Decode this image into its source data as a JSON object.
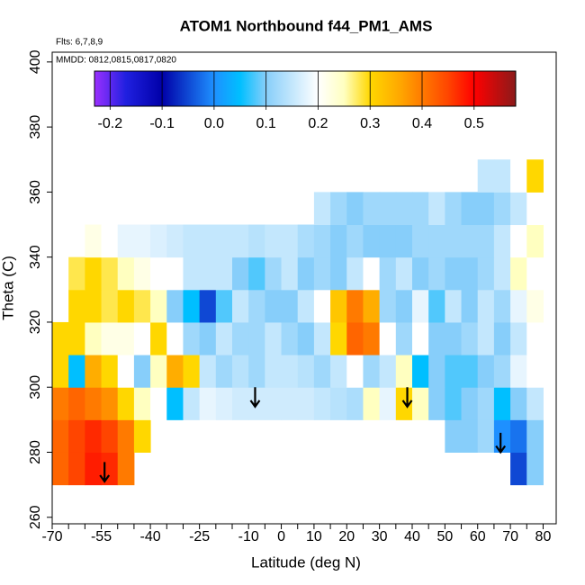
{
  "chart_data": {
    "type": "heatmap",
    "title": "ATOM1 Northbound f44_PM1_AMS",
    "annotations": [
      "Flts: 6,7,8,9",
      "MMDD: 0812,0815,0817,0820"
    ],
    "xlabel": "Latitude (deg N)",
    "ylabel": "Theta (C)",
    "xlim": [
      -70,
      84
    ],
    "ylim": [
      258,
      403
    ],
    "xticks": [
      -70,
      -55,
      -40,
      -25,
      -10,
      0,
      10,
      20,
      30,
      40,
      50,
      60,
      70,
      80
    ],
    "xminorticks": [
      -65,
      -60,
      -50,
      -45,
      -35,
      -30,
      -20,
      -15,
      -5,
      5,
      15,
      25,
      35,
      45,
      55,
      65,
      75
    ],
    "yticks": [
      260,
      280,
      300,
      320,
      340,
      360,
      380,
      400
    ],
    "x_edges": [
      -70,
      -65,
      -60,
      -55,
      -50,
      -45,
      -40,
      -35,
      -30,
      -25,
      -20,
      -15,
      -10,
      -5,
      0,
      5,
      10,
      15,
      20,
      25,
      30,
      35,
      40,
      45,
      50,
      55,
      60,
      65,
      70,
      75,
      80
    ],
    "y_edges": [
      270,
      280,
      290,
      300,
      310,
      320,
      330,
      340,
      350,
      360,
      370
    ],
    "z": [
      [
        0.42,
        0.45,
        0.48,
        0.47,
        0.4,
        null,
        null,
        null,
        null,
        null,
        null,
        null,
        null,
        null,
        null,
        null,
        null,
        null,
        null,
        null,
        null,
        null,
        null,
        null,
        null,
        null,
        null,
        null,
        -0.05,
        0.1
      ],
      [
        0.42,
        0.45,
        0.47,
        0.45,
        0.4,
        0.3,
        null,
        null,
        null,
        null,
        null,
        null,
        null,
        null,
        null,
        null,
        null,
        null,
        null,
        null,
        null,
        null,
        null,
        null,
        0.1,
        0.1,
        0.12,
        0.0,
        -0.02,
        0.1
      ],
      [
        0.4,
        0.42,
        0.4,
        0.38,
        0.3,
        0.25,
        0.2,
        0.05,
        0.15,
        0.18,
        0.17,
        0.16,
        0.16,
        0.16,
        0.16,
        0.16,
        0.15,
        0.14,
        0.13,
        0.25,
        0.18,
        0.3,
        0.25,
        0.1,
        0.08,
        0.1,
        0.12,
        0.05,
        0.1,
        0.15
      ],
      [
        0.3,
        0.05,
        0.35,
        0.3,
        0.2,
        0.1,
        0.25,
        0.35,
        0.3,
        0.15,
        0.12,
        0.14,
        0.12,
        0.15,
        0.15,
        0.14,
        0.12,
        0.15,
        0.2,
        0.12,
        0.15,
        0.25,
        0.05,
        0.1,
        0.08,
        0.08,
        0.1,
        0.12,
        0.18,
        0.2
      ],
      [
        0.3,
        0.3,
        0.25,
        0.22,
        0.22,
        0.2,
        0.3,
        0.2,
        0.12,
        0.1,
        0.15,
        0.12,
        0.12,
        0.15,
        0.12,
        0.1,
        0.15,
        0.3,
        0.42,
        0.4,
        0.2,
        0.12,
        0.2,
        0.1,
        0.1,
        0.12,
        0.15,
        0.1,
        0.15,
        0.2
      ],
      [
        null,
        0.3,
        0.3,
        0.28,
        0.3,
        0.28,
        0.25,
        0.1,
        0.05,
        -0.05,
        0.08,
        0.15,
        0.12,
        0.1,
        0.1,
        0.15,
        0.2,
        0.32,
        0.4,
        0.35,
        0.12,
        0.1,
        0.18,
        0.08,
        0.15,
        0.1,
        0.15,
        0.12,
        0.18,
        0.22
      ],
      [
        null,
        0.28,
        0.3,
        0.28,
        0.25,
        0.22,
        0.2,
        0.2,
        0.15,
        0.15,
        0.15,
        0.1,
        0.08,
        0.12,
        0.15,
        0.1,
        0.12,
        0.1,
        0.15,
        0.2,
        0.12,
        0.15,
        0.1,
        0.12,
        0.1,
        0.1,
        0.12,
        0.15,
        0.25,
        0.2
      ],
      [
        null,
        null,
        0.22,
        0.2,
        0.18,
        0.18,
        0.17,
        0.16,
        0.15,
        0.15,
        0.15,
        0.15,
        0.14,
        0.15,
        0.15,
        0.13,
        0.12,
        0.1,
        0.12,
        0.1,
        0.1,
        0.1,
        0.12,
        0.12,
        0.12,
        0.12,
        0.12,
        0.15,
        0.2,
        0.25
      ],
      [
        null,
        null,
        null,
        null,
        null,
        null,
        null,
        null,
        null,
        null,
        null,
        null,
        null,
        null,
        null,
        null,
        0.15,
        0.12,
        0.1,
        0.12,
        0.12,
        0.12,
        0.12,
        0.15,
        0.12,
        0.1,
        0.1,
        0.12,
        0.15,
        0.2
      ],
      [
        null,
        null,
        null,
        null,
        null,
        null,
        null,
        null,
        null,
        null,
        null,
        null,
        null,
        null,
        null,
        null,
        null,
        null,
        null,
        null,
        null,
        null,
        null,
        null,
        null,
        null,
        0.15,
        0.15,
        0.2,
        0.3
      ]
    ],
    "colorbar": {
      "lim": [
        -0.23,
        0.58
      ],
      "ticks": [
        -0.2,
        -0.1,
        {
          "value": 0,
          "label": "0.0"
        },
        0.1,
        0.2,
        0.3,
        0.4,
        0.5
      ]
    },
    "colorscale": [
      {
        "value": -0.23,
        "color": "#9b30ff"
      },
      {
        "value": -0.17,
        "color": "#2020e0"
      },
      {
        "value": -0.1,
        "color": "#0000a8"
      },
      {
        "value": 0.0,
        "color": "#1e90ff"
      },
      {
        "value": 0.05,
        "color": "#00bfff"
      },
      {
        "value": 0.1,
        "color": "#87cefa"
      },
      {
        "value": 0.2,
        "color": "#ffffff"
      },
      {
        "value": 0.25,
        "color": "#ffffc0"
      },
      {
        "value": 0.3,
        "color": "#ffd700"
      },
      {
        "value": 0.36,
        "color": "#ffa500"
      },
      {
        "value": 0.45,
        "color": "#ff4500"
      },
      {
        "value": 0.5,
        "color": "#ff0000"
      },
      {
        "value": 0.58,
        "color": "#8b1a1a"
      }
    ],
    "arrows": [
      {
        "x": -54,
        "y_from": 277,
        "y_to": 271
      },
      {
        "x": -8,
        "y_from": 300,
        "y_to": 294
      },
      {
        "x": 38.5,
        "y_from": 300,
        "y_to": 294
      },
      {
        "x": 67,
        "y_from": 286,
        "y_to": 280
      }
    ]
  }
}
